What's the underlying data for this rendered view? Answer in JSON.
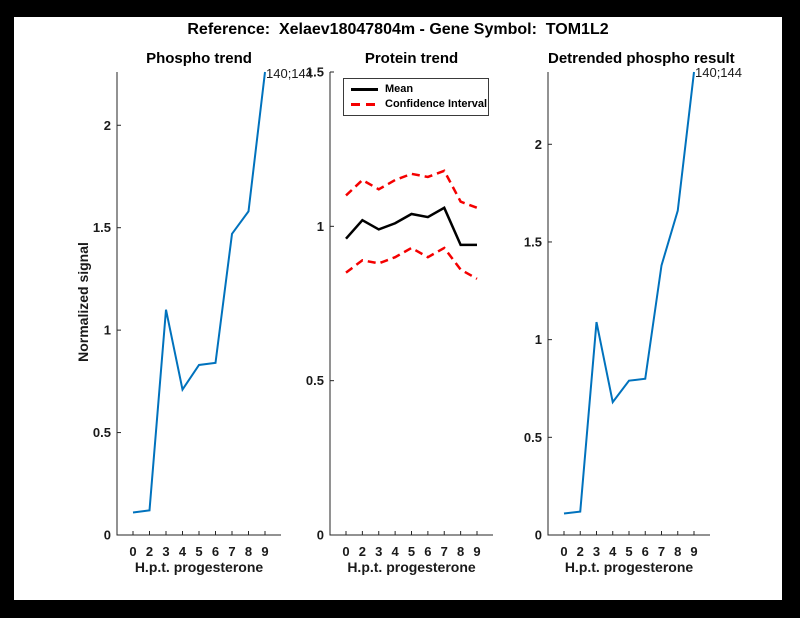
{
  "figure_title": "Reference:  Xelaev18047804m - Gene Symbol:  TOM1L2",
  "colors": {
    "frame": "#000000",
    "figure_background": "#ffffff",
    "axis": "#262626",
    "blue_line": "#0072BD",
    "mean_line": "#000000",
    "confidence_line": "#f40000"
  },
  "legend": {
    "entries": [
      {
        "label": "Mean",
        "style": "solid",
        "color": "#000000"
      },
      {
        "label": "Confidence Interval",
        "style": "dashed",
        "color": "#f40000"
      }
    ],
    "position": "upper-left-of-middle-plot"
  },
  "chart_data": [
    {
      "type": "line",
      "title": "Phospho trend",
      "xlabel": "H.p.t. progesterone",
      "ylabel": "Normalized signal",
      "annotation": "140;144",
      "x": [
        0,
        2,
        3,
        4,
        5,
        6,
        7,
        8,
        9
      ],
      "xtick_labels": [
        "0",
        "2",
        "3",
        "4",
        "5",
        "6",
        "7",
        "8",
        "9"
      ],
      "ylim": [
        0,
        2.26
      ],
      "ytick_labels": [
        "0",
        "0.5",
        "1",
        "1.5",
        "2"
      ],
      "yticks": [
        0,
        0.5,
        1,
        1.5,
        2
      ],
      "grid": false,
      "series": [
        {
          "name": "phospho-signal",
          "color": "#0072BD",
          "style": "solid",
          "width": 2,
          "values": [
            0.11,
            0.12,
            1.1,
            0.71,
            0.83,
            0.84,
            1.47,
            1.58,
            2.26
          ]
        }
      ]
    },
    {
      "type": "line",
      "title": "Protein trend",
      "xlabel": "H.p.t. progesterone",
      "ylabel": "",
      "annotation": "",
      "x": [
        0,
        2,
        3,
        4,
        5,
        6,
        7,
        8,
        9
      ],
      "xtick_labels": [
        "0",
        "2",
        "3",
        "4",
        "5",
        "6",
        "7",
        "8",
        "9"
      ],
      "ylim": [
        0,
        1.5
      ],
      "ytick_labels": [
        "0",
        "0.5",
        "1",
        "1.5"
      ],
      "yticks": [
        0,
        0.5,
        1,
        1.5
      ],
      "grid": false,
      "legend": [
        {
          "label": "Mean"
        },
        {
          "label": "Confidence Interval"
        }
      ],
      "series": [
        {
          "name": "mean",
          "color": "#000000",
          "style": "solid",
          "width": 2.5,
          "values": [
            0.96,
            1.02,
            0.99,
            1.01,
            1.04,
            1.03,
            1.06,
            0.94,
            0.94
          ]
        },
        {
          "name": "ci-upper",
          "color": "#f40000",
          "style": "dashed",
          "width": 2.5,
          "values": [
            1.1,
            1.15,
            1.12,
            1.15,
            1.17,
            1.16,
            1.18,
            1.08,
            1.06
          ]
        },
        {
          "name": "ci-lower",
          "color": "#f40000",
          "style": "dashed",
          "width": 2.5,
          "values": [
            0.85,
            0.89,
            0.88,
            0.9,
            0.93,
            0.9,
            0.93,
            0.86,
            0.83
          ]
        }
      ]
    },
    {
      "type": "line",
      "title": "Detrended phospho result",
      "xlabel": "H.p.t. progesterone",
      "ylabel": "",
      "annotation": "140;144",
      "x": [
        0,
        2,
        3,
        4,
        5,
        6,
        7,
        8,
        9
      ],
      "xtick_labels": [
        "0",
        "2",
        "3",
        "4",
        "5",
        "6",
        "7",
        "8",
        "9"
      ],
      "ylim": [
        0,
        2.37
      ],
      "ytick_labels": [
        "0",
        "0.5",
        "1",
        "1.5",
        "2"
      ],
      "yticks": [
        0,
        0.5,
        1,
        1.5,
        2
      ],
      "grid": false,
      "series": [
        {
          "name": "detrended-phospho-signal",
          "color": "#0072BD",
          "style": "solid",
          "width": 2,
          "values": [
            0.11,
            0.12,
            1.09,
            0.68,
            0.79,
            0.8,
            1.38,
            1.66,
            2.37
          ]
        }
      ]
    }
  ]
}
